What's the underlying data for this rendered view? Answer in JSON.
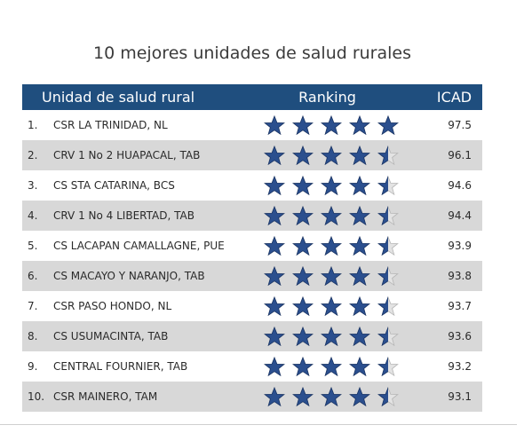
{
  "title": "10 mejores unidades de salud rurales",
  "header": {
    "unit": "Unidad de salud rural",
    "ranking": "Ranking",
    "icad": "ICAD"
  },
  "colors": {
    "header_bg": "#1f4e7e",
    "star_fill": "#2b4f8e",
    "row_alt": "#d8d8d8"
  },
  "rows": [
    {
      "num": "1.",
      "name": "CSR LA TRINIDAD, NL",
      "stars": 5,
      "icad": "97.5"
    },
    {
      "num": "2.",
      "name": "CRV 1 No 2 HUAPACAL, TAB",
      "stars": 4.5,
      "icad": "96.1"
    },
    {
      "num": "3.",
      "name": "CS STA CATARINA, BCS",
      "stars": 4.5,
      "icad": "94.6"
    },
    {
      "num": "4.",
      "name": "CRV 1 No 4 LIBERTAD, TAB",
      "stars": 4.5,
      "icad": "94.4"
    },
    {
      "num": "5.",
      "name": "CS LACAPAN CAMALLAGNE, PUE",
      "stars": 4.5,
      "icad": "93.9"
    },
    {
      "num": "6.",
      "name": "CS MACAYO Y NARANJO, TAB",
      "stars": 4.5,
      "icad": "93.8"
    },
    {
      "num": "7.",
      "name": "CSR PASO HONDO, NL",
      "stars": 4.5,
      "icad": "93.7"
    },
    {
      "num": "8.",
      "name": "CS USUMACINTA, TAB",
      "stars": 4.5,
      "icad": "93.6"
    },
    {
      "num": "9.",
      "name": "CENTRAL FOURNIER, TAB",
      "stars": 4.5,
      "icad": "93.2"
    },
    {
      "num": "10.",
      "name": "CSR MAINERO, TAM",
      "stars": 4.5,
      "icad": "93.1"
    }
  ]
}
